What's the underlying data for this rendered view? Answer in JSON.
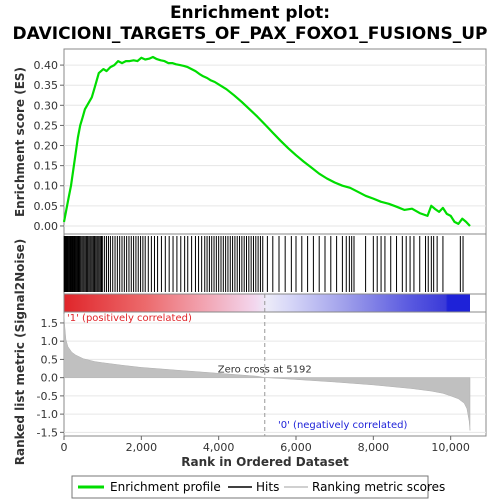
{
  "title_line1": "Enrichment plot:",
  "title_line2": "DAVICIONI_TARGETS_OF_PAX_FOXO1_FUSIONS_UP",
  "chart_data": {
    "type": "line",
    "xlabel": "Rank in Ordered Dataset",
    "xlim": [
      0,
      10500
    ],
    "x_ticks": [
      0,
      2000,
      4000,
      6000,
      8000,
      10000
    ],
    "x_tick_labels": [
      "0",
      "2,000",
      "4,000",
      "6,000",
      "8,000",
      "10,000"
    ],
    "es_panel": {
      "ylabel": "Enrichment score (ES)",
      "ylim": [
        -0.02,
        0.44
      ],
      "y_ticks": [
        0.0,
        0.05,
        0.1,
        0.15,
        0.2,
        0.25,
        0.3,
        0.35,
        0.4
      ],
      "y_tick_labels": [
        "0.00",
        "0.05",
        "0.10",
        "0.15",
        "0.20",
        "0.25",
        "0.30",
        "0.35",
        "0.40"
      ],
      "series_name": "Enrichment profile",
      "line_color": "#00dd00",
      "x": [
        0,
        60,
        120,
        180,
        240,
        300,
        360,
        420,
        480,
        540,
        600,
        660,
        720,
        780,
        840,
        900,
        960,
        1020,
        1100,
        1200,
        1300,
        1400,
        1500,
        1600,
        1700,
        1800,
        1900,
        2000,
        2100,
        2200,
        2300,
        2400,
        2500,
        2600,
        2700,
        2800,
        2900,
        3000,
        3100,
        3200,
        3300,
        3400,
        3500,
        3600,
        3700,
        3800,
        3900,
        4000,
        4200,
        4400,
        4600,
        4800,
        5000,
        5200,
        5400,
        5600,
        5800,
        6000,
        6200,
        6400,
        6600,
        6800,
        7000,
        7200,
        7400,
        7600,
        7800,
        8000,
        8200,
        8400,
        8600,
        8800,
        9000,
        9200,
        9400,
        9500,
        9600,
        9700,
        9800,
        9900,
        10000,
        10100,
        10200,
        10300,
        10400,
        10500
      ],
      "y": [
        0.01,
        0.04,
        0.07,
        0.1,
        0.14,
        0.18,
        0.22,
        0.25,
        0.27,
        0.29,
        0.3,
        0.31,
        0.32,
        0.34,
        0.36,
        0.38,
        0.385,
        0.39,
        0.385,
        0.395,
        0.4,
        0.41,
        0.405,
        0.41,
        0.41,
        0.412,
        0.41,
        0.418,
        0.414,
        0.416,
        0.42,
        0.415,
        0.412,
        0.41,
        0.405,
        0.405,
        0.402,
        0.4,
        0.398,
        0.395,
        0.39,
        0.385,
        0.378,
        0.372,
        0.368,
        0.362,
        0.358,
        0.352,
        0.34,
        0.325,
        0.308,
        0.29,
        0.272,
        0.252,
        0.232,
        0.212,
        0.193,
        0.176,
        0.16,
        0.145,
        0.13,
        0.118,
        0.108,
        0.1,
        0.095,
        0.085,
        0.075,
        0.068,
        0.06,
        0.055,
        0.048,
        0.04,
        0.043,
        0.032,
        0.025,
        0.05,
        0.042,
        0.035,
        0.045,
        0.03,
        0.025,
        0.01,
        0.005,
        0.018,
        0.01,
        0.0
      ]
    },
    "hits_panel": {
      "series_name": "Hits",
      "hit_ranks": [
        5,
        15,
        25,
        40,
        55,
        70,
        85,
        100,
        120,
        140,
        160,
        180,
        200,
        220,
        240,
        260,
        280,
        300,
        325,
        350,
        375,
        400,
        430,
        460,
        490,
        520,
        550,
        580,
        610,
        640,
        670,
        700,
        730,
        760,
        790,
        820,
        850,
        880,
        910,
        940,
        970,
        1000,
        1050,
        1100,
        1150,
        1200,
        1260,
        1320,
        1380,
        1440,
        1500,
        1560,
        1620,
        1680,
        1740,
        1800,
        1860,
        1920,
        1980,
        2040,
        2100,
        2180,
        2260,
        2340,
        2420,
        2520,
        2620,
        2720,
        2820,
        2920,
        3020,
        3120,
        3200,
        3300,
        3400,
        3480,
        3560,
        3640,
        3700,
        3760,
        3820,
        3880,
        3940,
        4000,
        4060,
        4120,
        4180,
        4240,
        4300,
        4360,
        4420,
        4480,
        4540,
        4600,
        4660,
        4720,
        4780,
        4840,
        4900,
        4960,
        5020,
        5080,
        5140,
        5260,
        5400,
        5560,
        5720,
        5880,
        6000,
        6150,
        6300,
        6450,
        6600,
        6750,
        6900,
        7050,
        7200,
        7300,
        7380,
        7440,
        7500,
        7800,
        8000,
        8100,
        8200,
        8300,
        8450,
        8600,
        8750,
        8850,
        8950,
        9050,
        9200,
        9350,
        9420,
        9500,
        9560,
        9650,
        9800,
        10250,
        10320
      ]
    },
    "ranking_panel": {
      "series_name": "Ranking metric scores",
      "ylabel": "Ranked list metric (Signal2Noise)",
      "ylim": [
        -1.6,
        1.8
      ],
      "y_ticks": [
        -1.5,
        -1.0,
        -0.5,
        0.0,
        0.5,
        1.0,
        1.5
      ],
      "y_tick_labels": [
        "-1.5",
        "-1.0",
        "-0.5",
        "0.0",
        "0.5",
        "1.0",
        "1.5"
      ],
      "x": [
        0,
        20,
        50,
        100,
        200,
        300,
        500,
        800,
        1000,
        1500,
        2000,
        3000,
        4000,
        5000,
        5192,
        6000,
        7000,
        8000,
        9000,
        9500,
        9800,
        10000,
        10200,
        10350,
        10420,
        10480,
        10500
      ],
      "values": [
        1.75,
        1.4,
        1.05,
        0.85,
        0.7,
        0.62,
        0.52,
        0.44,
        0.41,
        0.34,
        0.28,
        0.2,
        0.12,
        0.04,
        0.0,
        -0.05,
        -0.12,
        -0.2,
        -0.3,
        -0.37,
        -0.43,
        -0.5,
        -0.58,
        -0.7,
        -0.85,
        -1.2,
        -1.45
      ],
      "zero_cross_rank": 5192,
      "zero_cross_label": "Zero cross at 5192",
      "pos_label": "'1' (positively correlated)",
      "neg_label": "'0' (negatively correlated)",
      "pos_color": "#e0252a",
      "neg_color": "#1e22d8"
    },
    "legend": {
      "placement": "bottom",
      "items": [
        {
          "label": "Enrichment profile",
          "color": "#00dd00"
        },
        {
          "label": "Hits",
          "color": "#000000"
        },
        {
          "label": "Ranking metric scores",
          "color": "#c0c0c0"
        }
      ]
    }
  }
}
